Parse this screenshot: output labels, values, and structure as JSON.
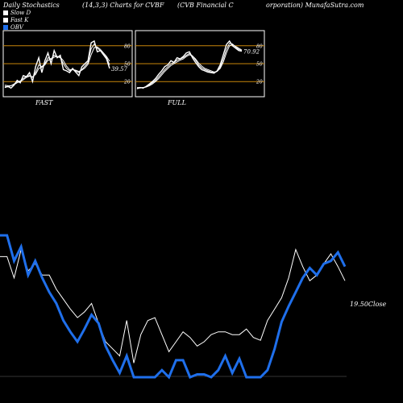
{
  "header": {
    "col1": "Daily Stochastics",
    "col2": "(14,3,3) Charts for CVBF",
    "col3": "(CVB Financial C",
    "col4": "orporation) MunafaSutra.com"
  },
  "legend": [
    {
      "label": "Slow  D",
      "color": "#ffffff"
    },
    {
      "label": "Fast  K",
      "color": "#ffffff"
    },
    {
      "label": "OBV",
      "color": "#1f6feb"
    }
  ],
  "colors": {
    "obv": "#1f6feb",
    "price": "#ffffff",
    "level": "#c8860a",
    "panel_border": "#ffffff"
  },
  "chart_data": [
    {
      "type": "line",
      "title": "FAST",
      "ylim": [
        0,
        100
      ],
      "levels": [
        20,
        50,
        80
      ],
      "level_labels": [
        "20",
        "50",
        "80"
      ],
      "last_value_label": "39.57",
      "series": [
        {
          "values": [
            10,
            12,
            9,
            14,
            22,
            18,
            30,
            28,
            35,
            20,
            45,
            60,
            35,
            55,
            68,
            50,
            72,
            60,
            64,
            40,
            38,
            35,
            42,
            36,
            30,
            45,
            50,
            55,
            85,
            88,
            70,
            72,
            65,
            58,
            42
          ]
        },
        {
          "values": [
            12,
            11,
            13,
            16,
            20,
            21,
            25,
            29,
            30,
            27,
            35,
            48,
            45,
            50,
            60,
            58,
            64,
            62,
            60,
            50,
            42,
            38,
            40,
            38,
            35,
            40,
            46,
            52,
            75,
            83,
            76,
            72,
            66,
            60,
            48
          ]
        },
        {
          "values": [
            14,
            13,
            13,
            15,
            18,
            20,
            23,
            27,
            29,
            28,
            32,
            42,
            44,
            48,
            56,
            57,
            61,
            62,
            61,
            55,
            46,
            40,
            40,
            39,
            37,
            39,
            43,
            49,
            65,
            77,
            78,
            74,
            68,
            62,
            54
          ]
        }
      ]
    },
    {
      "type": "line",
      "title": "FULL",
      "ylim": [
        0,
        100
      ],
      "levels": [
        20,
        50,
        80
      ],
      "level_labels": [
        "20",
        "50",
        "80"
      ],
      "last_value_label": "70.92",
      "series": [
        {
          "values": [
            8,
            10,
            9,
            12,
            16,
            20,
            25,
            32,
            38,
            45,
            48,
            55,
            52,
            60,
            58,
            62,
            68,
            70,
            60,
            52,
            45,
            40,
            38,
            36,
            35,
            34,
            38,
            48,
            65,
            82,
            88,
            80,
            76,
            72,
            71
          ]
        },
        {
          "values": [
            9,
            9,
            10,
            11,
            14,
            18,
            22,
            28,
            34,
            40,
            45,
            50,
            52,
            56,
            58,
            60,
            64,
            67,
            63,
            56,
            48,
            43,
            40,
            38,
            36,
            35,
            37,
            44,
            58,
            74,
            84,
            83,
            78,
            74,
            72
          ]
        },
        {
          "values": [
            10,
            10,
            10,
            11,
            13,
            16,
            20,
            25,
            31,
            37,
            42,
            47,
            50,
            53,
            56,
            58,
            62,
            65,
            63,
            58,
            51,
            46,
            42,
            40,
            38,
            36,
            37,
            42,
            53,
            68,
            80,
            82,
            79,
            76,
            73
          ]
        }
      ]
    },
    {
      "type": "line",
      "close_label": "19.50Close",
      "series": [
        {
          "name": "OBV",
          "values": [
            100,
            100,
            82,
            92,
            72,
            82,
            70,
            60,
            52,
            40,
            32,
            25,
            34,
            44,
            38,
            22,
            12,
            3,
            15,
            0,
            0,
            0,
            0,
            5,
            0,
            12,
            12,
            0,
            2,
            2,
            0,
            5,
            15,
            3,
            13,
            0,
            0,
            0,
            5,
            20,
            39,
            50,
            60,
            70,
            77,
            72,
            80,
            82,
            88,
            78
          ]
        },
        {
          "name": "Price",
          "values": [
            85,
            85,
            70,
            90,
            75,
            80,
            72,
            72,
            62,
            55,
            48,
            42,
            46,
            52,
            38,
            25,
            20,
            15,
            40,
            10,
            30,
            40,
            42,
            30,
            18,
            25,
            32,
            28,
            22,
            25,
            30,
            32,
            32,
            30,
            30,
            34,
            28,
            26,
            40,
            48,
            56,
            70,
            90,
            78,
            68,
            72,
            80,
            87,
            78,
            68
          ]
        }
      ]
    }
  ]
}
